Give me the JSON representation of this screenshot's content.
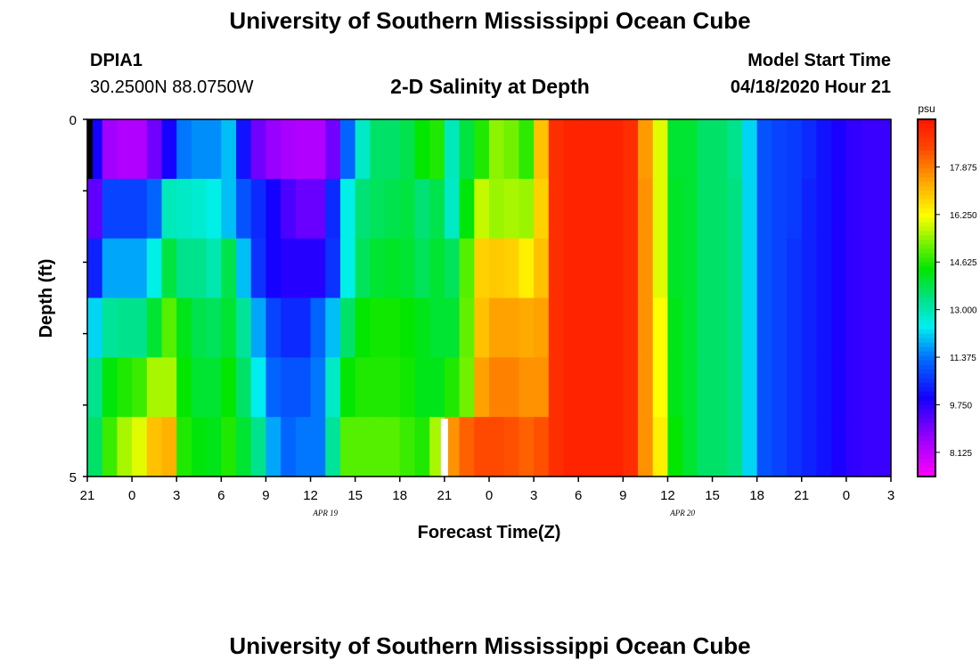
{
  "header": {
    "title_top": "University of Southern Mississippi Ocean Cube",
    "title_bottom": "University of Southern Mississippi Ocean Cube",
    "station_id": "DPIA1",
    "station_coords": "30.2500N 88.0750W",
    "plot_title": "2-D Salinity at Depth",
    "model_start_label": "Model Start Time",
    "model_start_value": "04/18/2020 Hour 21"
  },
  "chart_data": {
    "type": "heatmap",
    "title": "2-D Salinity at Depth",
    "xlabel": "Forecast Time(Z)",
    "ylabel": "Depth (ft)",
    "x_tick_labels": [
      "21",
      "0",
      "3",
      "6",
      "9",
      "12",
      "15",
      "18",
      "21",
      "0",
      "3",
      "6",
      "9",
      "12",
      "15",
      "18",
      "21",
      "0",
      "3"
    ],
    "x_hours": [
      0,
      54
    ],
    "date_labels": [
      {
        "label": "APR 19",
        "hour": 16
      },
      {
        "label": "APR 20",
        "hour": 40
      }
    ],
    "y_tick_labels": [
      "0",
      "5"
    ],
    "y_range": [
      0,
      5
    ],
    "colorbar": {
      "unit": "psu",
      "min": 7.3,
      "max": 19.5,
      "tick_labels": [
        "17.875",
        "16.250",
        "14.625",
        "13.000",
        "11.375",
        "9.750",
        "8.125"
      ],
      "tick_values": [
        17.875,
        16.25,
        14.625,
        13.0,
        11.375,
        9.75,
        8.125
      ]
    },
    "values": [
      [
        10.0,
        8.5,
        8.3,
        8.3,
        9.0,
        10.0,
        11.4,
        11.6,
        11.6,
        12.0,
        10.2,
        9.0,
        8.6,
        8.4,
        8.3,
        8.3,
        9.0,
        11.2,
        12.8,
        13.6,
        13.6,
        13.8,
        14.4,
        14.6,
        12.9,
        13.9,
        14.6,
        15.4,
        15.2,
        14.7,
        17.0,
        19.0,
        19.2,
        19.2,
        19.2,
        19.2,
        19.0,
        17.5,
        16.0,
        14.0,
        14.0,
        13.6,
        13.6,
        13.3,
        12.2,
        11.0,
        10.8,
        10.7,
        10.5,
        10.2,
        9.9,
        9.7,
        9.6,
        9.6
      ],
      [
        9.2,
        10.8,
        10.8,
        10.8,
        11.2,
        12.9,
        12.8,
        12.7,
        12.5,
        12.0,
        11.0,
        10.5,
        10.0,
        9.4,
        9.1,
        9.1,
        10.5,
        12.5,
        13.5,
        13.7,
        13.8,
        13.9,
        13.5,
        13.8,
        12.8,
        14.3,
        15.8,
        15.5,
        15.6,
        15.5,
        16.8,
        19.0,
        19.2,
        19.2,
        19.2,
        19.2,
        19.0,
        17.6,
        16.0,
        14.1,
        14.0,
        13.6,
        13.6,
        13.4,
        12.2,
        11.0,
        10.8,
        10.7,
        10.4,
        10.2,
        9.9,
        9.7,
        9.6,
        9.6
      ],
      [
        10.4,
        11.8,
        11.8,
        11.8,
        12.5,
        13.9,
        13.3,
        13.3,
        13.0,
        13.8,
        12.0,
        10.6,
        10.0,
        9.8,
        9.8,
        9.8,
        10.6,
        12.5,
        13.7,
        14.0,
        14.1,
        14.0,
        13.7,
        14.0,
        13.7,
        15.0,
        16.8,
        16.9,
        16.8,
        16.4,
        17.0,
        19.0,
        19.2,
        19.2,
        19.2,
        19.2,
        19.0,
        17.6,
        16.0,
        14.1,
        14.0,
        13.6,
        13.6,
        13.4,
        12.2,
        11.0,
        10.8,
        10.6,
        10.4,
        10.2,
        9.9,
        9.7,
        9.6,
        9.6
      ],
      [
        12.2,
        13.2,
        13.3,
        13.3,
        14.0,
        15.0,
        14.2,
        13.8,
        13.7,
        14.0,
        13.2,
        11.8,
        10.8,
        10.5,
        10.5,
        11.2,
        12.0,
        13.6,
        14.4,
        14.5,
        14.5,
        14.4,
        14.2,
        14.0,
        14.0,
        15.1,
        17.0,
        17.4,
        17.4,
        17.3,
        17.4,
        19.0,
        19.2,
        19.2,
        19.2,
        19.2,
        19.0,
        17.6,
        16.2,
        14.2,
        14.0,
        13.6,
        13.6,
        13.4,
        12.2,
        11.0,
        10.8,
        10.6,
        10.4,
        10.2,
        9.9,
        9.7,
        9.6,
        9.6
      ],
      [
        13.3,
        14.3,
        14.6,
        14.8,
        15.6,
        15.6,
        14.4,
        14.0,
        14.0,
        14.4,
        13.6,
        12.4,
        11.2,
        11.0,
        11.0,
        11.4,
        12.8,
        14.4,
        14.6,
        14.6,
        14.6,
        14.5,
        14.2,
        14.2,
        14.6,
        15.2,
        17.4,
        17.8,
        17.8,
        17.6,
        17.6,
        19.0,
        19.2,
        19.2,
        19.2,
        19.2,
        19.0,
        17.6,
        16.2,
        14.2,
        14.0,
        13.6,
        13.6,
        13.4,
        12.2,
        11.0,
        10.8,
        10.6,
        10.4,
        10.2,
        9.9,
        9.7,
        9.6,
        9.6
      ],
      [
        13.6,
        14.8,
        15.6,
        16.0,
        17.0,
        17.2,
        14.6,
        14.3,
        14.2,
        14.6,
        14.0,
        13.3,
        11.8,
        11.2,
        11.4,
        11.4,
        13.2,
        15.0,
        15.0,
        15.0,
        15.0,
        14.8,
        14.6,
        15.6,
        17.6,
        18.2,
        18.5,
        18.5,
        18.4,
        18.2,
        18.4,
        19.0,
        19.2,
        19.2,
        19.2,
        19.2,
        19.0,
        17.6,
        16.4,
        14.4,
        14.0,
        13.6,
        13.6,
        13.4,
        12.2,
        11.0,
        10.8,
        10.6,
        10.4,
        10.2,
        9.9,
        9.7,
        9.6,
        9.6
      ]
    ]
  }
}
